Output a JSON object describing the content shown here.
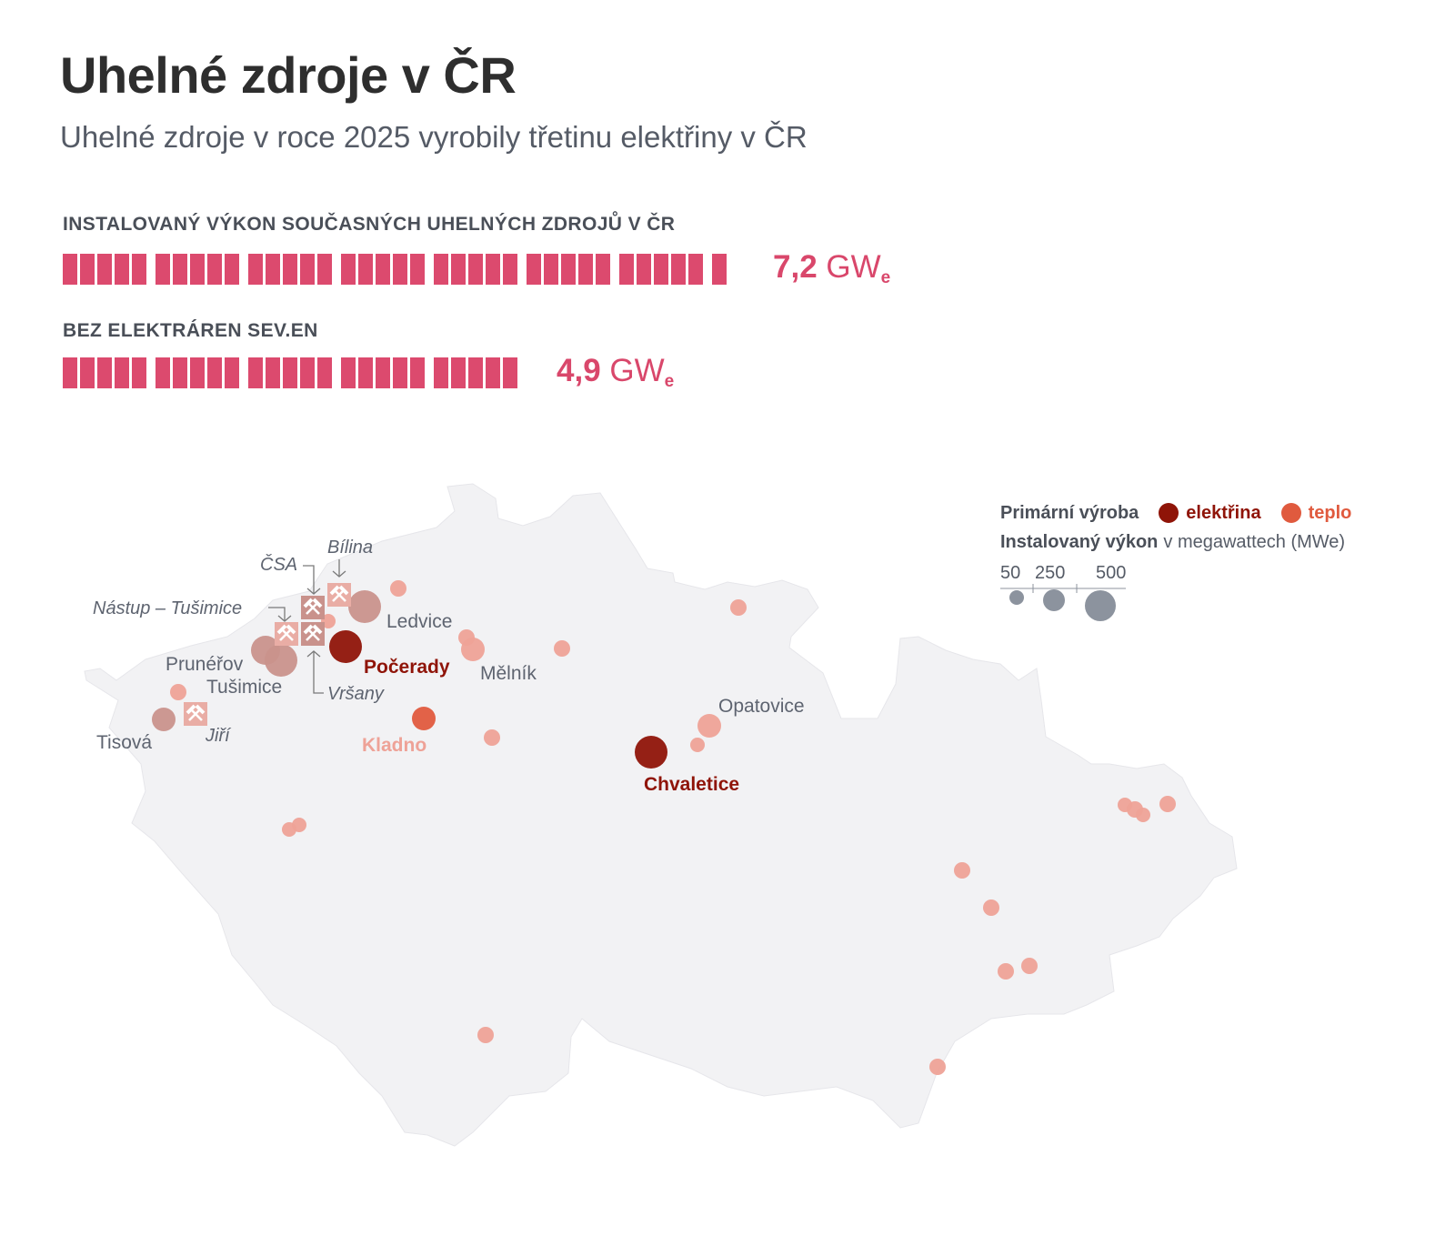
{
  "title": "Uhelné zdroje v ČR",
  "subtitle": "Uhelné zdroje v roce 2025 vyrobily třetinu elektřiny v ČR",
  "bars": [
    {
      "label": "INSTALOVANÝ VÝKON SOUČASNÝCH UHELNÝCH ZDROJŮ V ČR",
      "value_num": "7,2",
      "value_unit": "GW",
      "unit_sub": "e",
      "value": 7.2
    },
    {
      "label": "BEZ ELEKTRÁREN SEV.EN",
      "value_num": "4,9",
      "value_unit": "GW",
      "unit_sub": "e",
      "value": 4.9
    }
  ],
  "colors": {
    "bar": "#dc4a6e",
    "electricity": "#8f1408",
    "heat": "#e05a3e",
    "small_heat": "#eea297",
    "sev_en": "#c9928c",
    "land": "#f2f2f4",
    "mine": "#e9ada5",
    "legend_size": "#8c939e"
  },
  "legend": {
    "primary_label": "Primární výroba",
    "electricity_label": "elektřina",
    "heat_label": "teplo",
    "capacity_label": "Instalovaný výkon",
    "capacity_unit": "v megawattech (MWe)",
    "sizes": [
      "50",
      "250",
      "500"
    ]
  },
  "map_labels": {
    "pocerady": "Počerady",
    "kladno": "Kladno",
    "chvaletice": "Chvaletice",
    "ledvice": "Ledvice",
    "melnik": "Mělník",
    "opatovice": "Opatovice",
    "prunerov": "Prunéřov",
    "tusimice": "Tušimice",
    "tisova": "Tisová"
  },
  "mine_labels": {
    "csa": "ČSA",
    "bilina": "Bílina",
    "nastup": "Nástup – Tušimice",
    "vrsany": "Vršany",
    "jiri": "Jiří"
  },
  "mine_icon": "hammer-crossed-icon"
}
